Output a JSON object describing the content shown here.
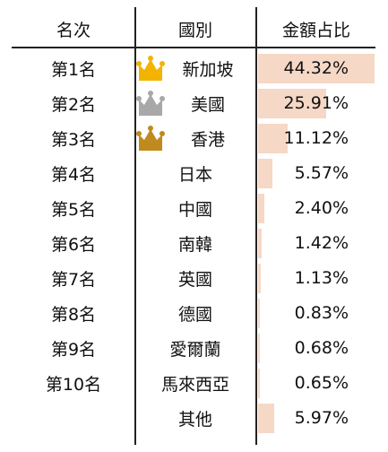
{
  "header": {
    "rank": "名次",
    "country": "國別",
    "share": "金額占比"
  },
  "colors": {
    "bar": "#f6d8c6",
    "gold": "#f2b400",
    "silver": "#a8a8a8",
    "bronze": "#c08a1e"
  },
  "rows": [
    {
      "rank": "第1名",
      "country": "新加坡",
      "share": "44.32%",
      "value": 44.32,
      "crown": "gold-crown-icon"
    },
    {
      "rank": "第2名",
      "country": "美國",
      "share": "25.91%",
      "value": 25.91,
      "crown": "silver-crown-icon"
    },
    {
      "rank": "第3名",
      "country": "香港",
      "share": "11.12%",
      "value": 11.12,
      "crown": "bronze-crown-icon"
    },
    {
      "rank": "第4名",
      "country": "日本",
      "share": "5.57%",
      "value": 5.57
    },
    {
      "rank": "第5名",
      "country": "中國",
      "share": "2.40%",
      "value": 2.4
    },
    {
      "rank": "第6名",
      "country": "南韓",
      "share": "1.42%",
      "value": 1.42
    },
    {
      "rank": "第7名",
      "country": "英國",
      "share": "1.13%",
      "value": 1.13
    },
    {
      "rank": "第8名",
      "country": "德國",
      "share": "0.83%",
      "value": 0.83
    },
    {
      "rank": "第9名",
      "country": "愛爾蘭",
      "share": "0.68%",
      "value": 0.68
    },
    {
      "rank": "第10名",
      "country": "馬來西亞",
      "share": "0.65%",
      "value": 0.65
    },
    {
      "rank": "",
      "country": "其他",
      "share": "5.97%",
      "value": 5.97
    }
  ]
}
